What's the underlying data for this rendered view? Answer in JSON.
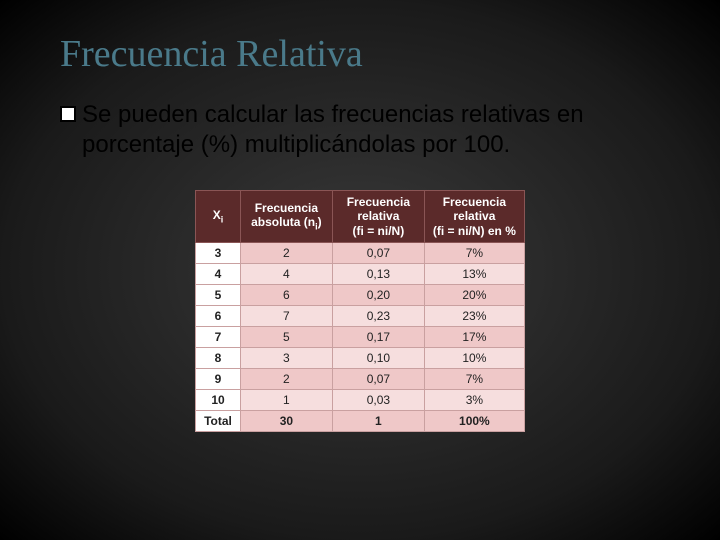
{
  "title": "Frecuencia Relativa",
  "bullet": "Se pueden calcular las frecuencias relativas en porcentaje (%) multiplicándolas por 100.",
  "table": {
    "headers": {
      "x": "X",
      "xsub": "i",
      "c1a": "Frecuencia",
      "c1b": "absoluta (n",
      "c1sub": "i",
      "c1c": ")",
      "c2a": "Frecuencia",
      "c2b": "relativa",
      "c2c": "(fi = ni/N)",
      "c3a": "Frecuencia",
      "c3b": "relativa",
      "c3c": "(fi = ni/N) en %"
    },
    "rows": [
      {
        "x": "3",
        "abs": "2",
        "rel": "0,07",
        "pct": "7%"
      },
      {
        "x": "4",
        "abs": "4",
        "rel": "0,13",
        "pct": "13%"
      },
      {
        "x": "5",
        "abs": "6",
        "rel": "0,20",
        "pct": "20%"
      },
      {
        "x": "6",
        "abs": "7",
        "rel": "0,23",
        "pct": "23%"
      },
      {
        "x": "7",
        "abs": "5",
        "rel": "0,17",
        "pct": "17%"
      },
      {
        "x": "8",
        "abs": "3",
        "rel": "0,10",
        "pct": "10%"
      },
      {
        "x": "9",
        "abs": "2",
        "rel": "0,07",
        "pct": "7%"
      },
      {
        "x": "10",
        "abs": "1",
        "rel": "0,03",
        "pct": "3%"
      }
    ],
    "total": {
      "label": "Total",
      "abs": "30",
      "rel": "1",
      "pct": "100%"
    }
  },
  "colors": {
    "title": "#4a7a8a",
    "header_bg": "#5b2a2a",
    "row_odd": "#efc8c8",
    "row_even": "#f6dede"
  }
}
